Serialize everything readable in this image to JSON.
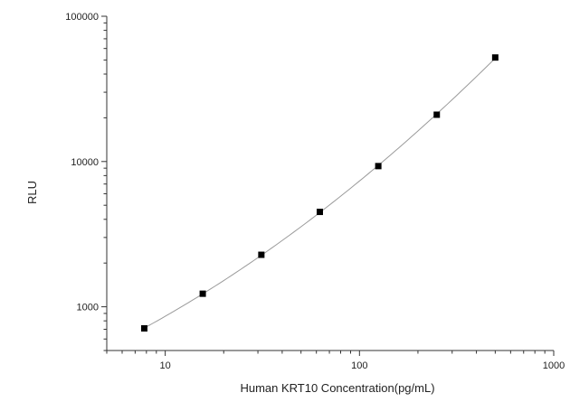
{
  "chart_data": {
    "type": "scatter",
    "title": "",
    "xlabel": "Human KRT10 Concentration(pg/mL)",
    "ylabel": "RLU",
    "x_scale": "log",
    "y_scale": "log",
    "xlim": [
      5,
      1000
    ],
    "ylim": [
      500,
      100000
    ],
    "x_ticks": [
      {
        "value": 10,
        "label": "10"
      },
      {
        "value": 100,
        "label": "100"
      },
      {
        "value": 1000,
        "label": "1000"
      }
    ],
    "y_ticks": [
      {
        "value": 1000,
        "label": "1000"
      },
      {
        "value": 10000,
        "label": "10000"
      },
      {
        "value": 100000,
        "label": "100000"
      }
    ],
    "grid": false,
    "legend": "none",
    "series": [
      {
        "x": [
          7.8,
          15.6,
          31.25,
          62.5,
          125,
          250,
          500
        ],
        "y": [
          710,
          1230,
          2280,
          4500,
          9300,
          21000,
          52000
        ],
        "fit_line": true
      }
    ],
    "colors": {
      "marker": "#000000",
      "fit_line": "#9a9a9a",
      "axis": "#333333"
    }
  }
}
